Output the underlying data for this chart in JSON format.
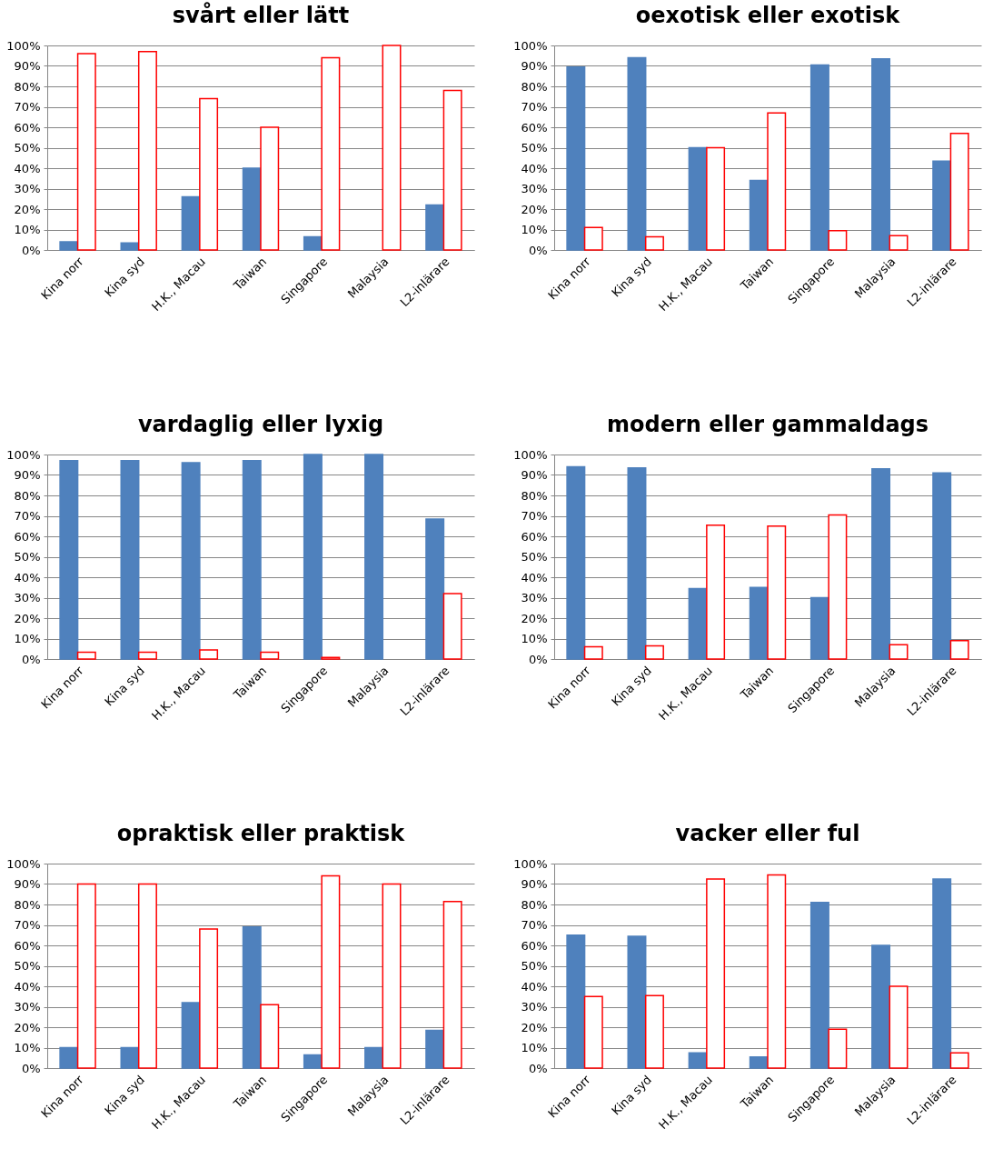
{
  "chart_data": [
    {
      "type": "bar",
      "title": "svårt eller lätt",
      "categories": [
        "Kina norr",
        "Kina syd",
        "H.K., Macau",
        "Taiwan",
        "Singapore",
        "Malaysia",
        "L2-inlärare"
      ],
      "series": [
        {
          "color": "#4f81bd",
          "values": [
            4,
            3.5,
            26,
            40,
            6.5,
            null,
            22
          ]
        },
        {
          "color": "#ff0000",
          "values": [
            96,
            97,
            74,
            60,
            94,
            100,
            78
          ]
        }
      ],
      "ylim": [
        0,
        100
      ],
      "yticks": [
        {
          "value": 0,
          "label": "0%"
        },
        {
          "value": 10,
          "label": "10%"
        },
        {
          "value": 20,
          "label": "20%"
        },
        {
          "value": 30,
          "label": "30%"
        },
        {
          "value": 40,
          "label": "40%"
        },
        {
          "value": 50,
          "label": "50%"
        },
        {
          "value": 60,
          "label": "60%"
        },
        {
          "value": 70,
          "label": "70%"
        },
        {
          "value": 80,
          "label": "80%"
        },
        {
          "value": 90,
          "label": "90%"
        },
        {
          "value": 100,
          "label": "100%"
        }
      ],
      "grid": "y"
    },
    {
      "type": "bar",
      "title": "oexotisk eller exotisk",
      "categories": [
        "Kina norr",
        "Kina syd",
        "H.K., Macau",
        "Taiwan",
        "Singapore",
        "Malaysia",
        "L2-inlärare"
      ],
      "series": [
        {
          "color": "#4f81bd",
          "values": [
            89.5,
            94,
            50,
            34,
            90.5,
            93.5,
            43.5
          ]
        },
        {
          "color": "#ff0000",
          "values": [
            11,
            6.5,
            50,
            67,
            9.5,
            7,
            57
          ]
        }
      ],
      "ylim": [
        0,
        100
      ],
      "yticks": [
        {
          "value": 0,
          "label": "0%"
        },
        {
          "value": 10,
          "label": "10%"
        },
        {
          "value": 20,
          "label": "20%"
        },
        {
          "value": 30,
          "label": "30%"
        },
        {
          "value": 40,
          "label": "40%"
        },
        {
          "value": 50,
          "label": "50%"
        },
        {
          "value": 60,
          "label": "60%"
        },
        {
          "value": 70,
          "label": "70%"
        },
        {
          "value": 80,
          "label": "80%"
        },
        {
          "value": 90,
          "label": "90%"
        },
        {
          "value": 100,
          "label": "100%"
        }
      ],
      "grid": "y"
    },
    {
      "type": "bar",
      "title": "vardaglig eller lyxig",
      "categories": [
        "Kina norr",
        "Kina syd",
        "H.K., Macau",
        "Taiwan",
        "Singapore",
        "Malaysia",
        "L2-inlärare"
      ],
      "series": [
        {
          "color": "#4f81bd",
          "values": [
            97,
            97,
            96,
            97,
            100,
            100,
            68.5
          ]
        },
        {
          "color": "#ff0000",
          "values": [
            3.3,
            3.3,
            4.5,
            3.3,
            0.8,
            null,
            32
          ]
        }
      ],
      "ylim": [
        0,
        100
      ],
      "yticks": [
        {
          "value": 0,
          "label": "0%"
        },
        {
          "value": 10,
          "label": "10%"
        },
        {
          "value": 20,
          "label": "20%"
        },
        {
          "value": 30,
          "label": "30%"
        },
        {
          "value": 40,
          "label": "40%"
        },
        {
          "value": 50,
          "label": "50%"
        },
        {
          "value": 60,
          "label": "60%"
        },
        {
          "value": 70,
          "label": "70%"
        },
        {
          "value": 80,
          "label": "80%"
        },
        {
          "value": 90,
          "label": "90%"
        },
        {
          "value": 100,
          "label": "100%"
        }
      ],
      "grid": "y"
    },
    {
      "type": "bar",
      "title": "modern eller gammaldags",
      "categories": [
        "Kina norr",
        "Kina syd",
        "H.K., Macau",
        "Taiwan",
        "Singapore",
        "Malaysia",
        "L2-inlärare"
      ],
      "series": [
        {
          "color": "#4f81bd",
          "values": [
            94,
            93.5,
            34.5,
            35,
            30,
            93,
            91
          ]
        },
        {
          "color": "#ff0000",
          "values": [
            6,
            6.5,
            65.5,
            65,
            70.5,
            7,
            9
          ]
        }
      ],
      "ylim": [
        0,
        100
      ],
      "yticks": [
        {
          "value": 0,
          "label": "0%"
        },
        {
          "value": 10,
          "label": "10%"
        },
        {
          "value": 20,
          "label": "20%"
        },
        {
          "value": 30,
          "label": "30%"
        },
        {
          "value": 40,
          "label": "40%"
        },
        {
          "value": 50,
          "label": "50%"
        },
        {
          "value": 60,
          "label": "60%"
        },
        {
          "value": 70,
          "label": "70%"
        },
        {
          "value": 80,
          "label": "80%"
        },
        {
          "value": 90,
          "label": "90%"
        },
        {
          "value": 100,
          "label": "100%"
        }
      ],
      "grid": "y"
    },
    {
      "type": "bar",
      "title": "opraktisk eller praktisk",
      "categories": [
        "Kina norr",
        "Kina syd",
        "H.K., Macau",
        "Taiwan",
        "Singapore",
        "Malaysia",
        "L2-inlärare"
      ],
      "series": [
        {
          "color": "#4f81bd",
          "values": [
            10,
            10,
            32,
            69,
            6.5,
            10,
            18.5
          ]
        },
        {
          "color": "#ff0000",
          "values": [
            90,
            90,
            68,
            31,
            94,
            90,
            81.5
          ]
        }
      ],
      "ylim": [
        0,
        100
      ],
      "yticks": [
        {
          "value": 0,
          "label": "0%"
        },
        {
          "value": 10,
          "label": "10%"
        },
        {
          "value": 20,
          "label": "20%"
        },
        {
          "value": 30,
          "label": "30%"
        },
        {
          "value": 40,
          "label": "40%"
        },
        {
          "value": 50,
          "label": "50%"
        },
        {
          "value": 60,
          "label": "60%"
        },
        {
          "value": 70,
          "label": "70%"
        },
        {
          "value": 80,
          "label": "80%"
        },
        {
          "value": 90,
          "label": "90%"
        },
        {
          "value": 100,
          "label": "100%"
        }
      ],
      "grid": "y"
    },
    {
      "type": "bar",
      "title": "vacker eller ful",
      "categories": [
        "Kina norr",
        "Kina syd",
        "H.K., Macau",
        "Taiwan",
        "Singapore",
        "Malaysia",
        "L2-inlärare"
      ],
      "series": [
        {
          "color": "#4f81bd",
          "values": [
            65,
            64.5,
            7.5,
            5.5,
            81,
            60,
            92.5
          ]
        },
        {
          "color": "#ff0000",
          "values": [
            35,
            35.5,
            92.5,
            94.5,
            19,
            40,
            7.5
          ]
        }
      ],
      "ylim": [
        0,
        100
      ],
      "yticks": [
        {
          "value": 0,
          "label": "0%"
        },
        {
          "value": 10,
          "label": "10%"
        },
        {
          "value": 20,
          "label": "20%"
        },
        {
          "value": 30,
          "label": "30%"
        },
        {
          "value": 40,
          "label": "40%"
        },
        {
          "value": 50,
          "label": "50%"
        },
        {
          "value": 60,
          "label": "60%"
        },
        {
          "value": 70,
          "label": "70%"
        },
        {
          "value": 80,
          "label": "80%"
        },
        {
          "value": 90,
          "label": "90%"
        },
        {
          "value": 100,
          "label": "100%"
        }
      ],
      "grid": "y"
    }
  ]
}
